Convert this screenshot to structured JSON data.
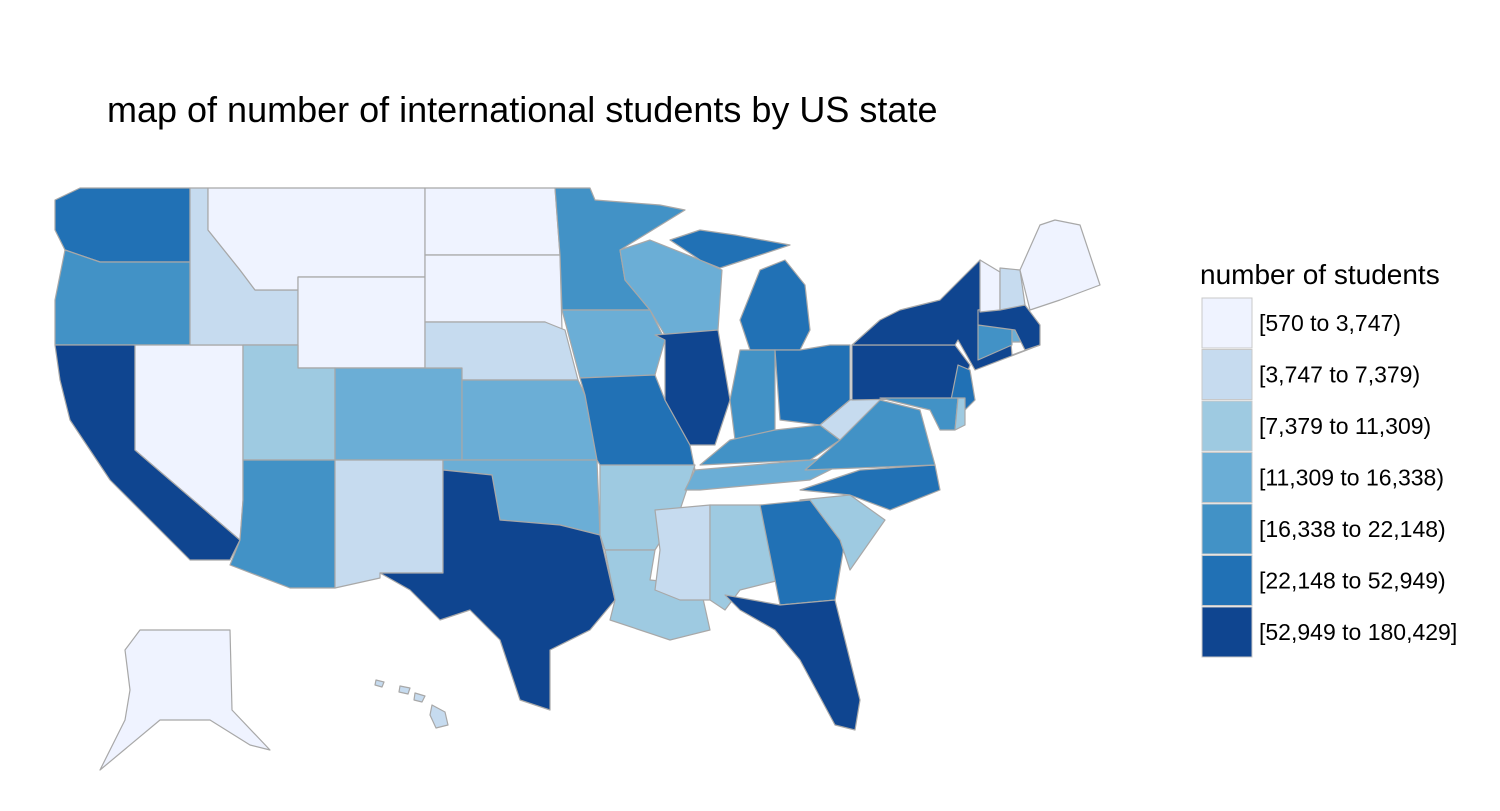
{
  "title": "map of number of international students by US state",
  "legend": {
    "title": "number of students",
    "items": [
      {
        "label": "[570 to 3,747)",
        "color": "#eff3ff"
      },
      {
        "label": "[3,747 to 7,379)",
        "color": "#c6dbef"
      },
      {
        "label": "[7,379 to 11,309)",
        "color": "#9ecae1"
      },
      {
        "label": "[11,309 to 16,338)",
        "color": "#6baed6"
      },
      {
        "label": "[16,338 to 22,148)",
        "color": "#4292c6"
      },
      {
        "label": "[22,148 to 52,949)",
        "color": "#2171b5"
      },
      {
        "label": "[52,949 to 180,429]",
        "color": "#0f4590"
      }
    ]
  }
}
